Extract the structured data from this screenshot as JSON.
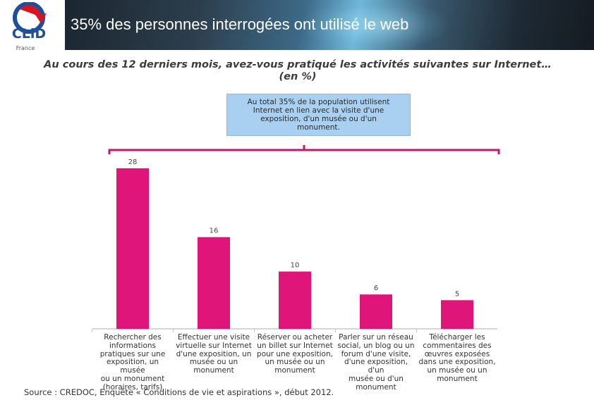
{
  "slide": {
    "title": "35% des personnes interrogées ont utilisé le web",
    "logo_text": "CLiD",
    "logo_subtext": "France"
  },
  "colors": {
    "bar": "#e0157a",
    "bracket": "#c2186b",
    "callout_bg": "#a9d0f1"
  },
  "callout": {
    "lines": [
      "Au total 35% de la population utilisent",
      "Internet en lien avec la visite d'une",
      "exposition, d'un musée ou d'un",
      "monument."
    ]
  },
  "chart_data": {
    "type": "bar",
    "title": "Au cours des 12 derniers mois, avez-vous pratiqué les activités suivantes sur Internet… (en %)",
    "title_lines": [
      "Au cours des 12 derniers mois, avez-vous pratiqué les activités suivantes sur Internet…",
      "(en %)"
    ],
    "categories": [
      [
        "Rechercher des",
        "informations",
        "pratiques sur une",
        "exposition, un musée",
        "ou un monument",
        "(horaires, tarifs)"
      ],
      [
        "Effectuer une visite",
        "virtuelle sur Internet",
        "d'une exposition, un",
        "musée ou un",
        "monument"
      ],
      [
        "Réserver ou acheter",
        "un billet sur Internet",
        "pour une exposition,",
        "un musée ou un",
        "monument"
      ],
      [
        "Parler sur un réseau",
        "social, un blog ou un",
        "forum d'une visite,",
        "d'une exposition, d'un",
        "musée ou d'un",
        "monument"
      ],
      [
        "Télécharger les",
        "commentaires des",
        "œuvres exposées",
        "dans une exposition,",
        "un musée ou un",
        "monument"
      ]
    ],
    "values": [
      28,
      16,
      10,
      6,
      5
    ],
    "data_labels": [
      "28",
      "16",
      "10",
      "6",
      "5"
    ],
    "xlabel": "",
    "ylabel": "",
    "ylim": [
      0,
      30
    ],
    "grid": false,
    "legend": "none",
    "source": "Source : CREDOC, Enquête « Conditions de vie et aspirations », début 2012."
  }
}
